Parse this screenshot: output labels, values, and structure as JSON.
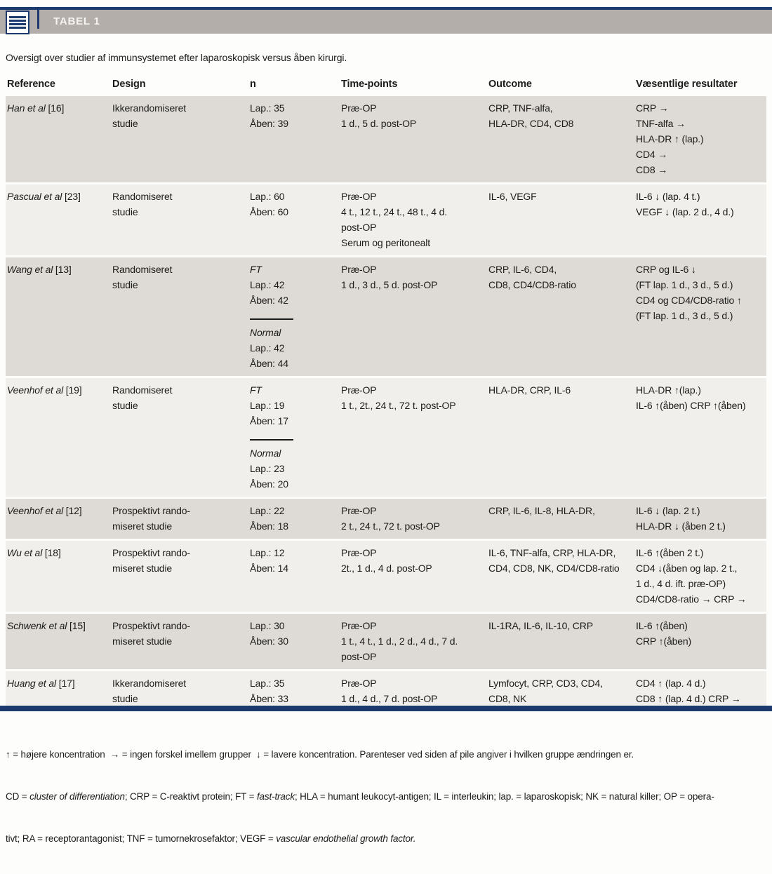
{
  "header": {
    "title": "TABEL 1",
    "icon": "table-list-icon"
  },
  "caption": "Oversigt over studier af immunsystemet efter laparoskopisk versus åben kirurgi.",
  "colors": {
    "navy_rule": "#1c3a6e",
    "title_bar_gray": "#b3aeaa",
    "row_shaded": "#dedad5",
    "row_light": "#f1efeb",
    "text": "#1c1c1a",
    "title_text": "#f5f4f2"
  },
  "table": {
    "columns": [
      "Reference",
      "Design",
      "n",
      "Time-points",
      "Outcome",
      "Væsentlige resultater"
    ],
    "rows": [
      {
        "ref_name": "Han et al",
        "ref_num": "[16]",
        "design": [
          "Ikkerandomiseret",
          "studie"
        ],
        "n": [
          "Lap.: 35",
          "Åben: 39"
        ],
        "timepoints": [
          "Præ-OP",
          "1 d., 5 d. post-OP"
        ],
        "outcome": [
          "CRP, TNF-alfa,",
          "HLA-DR, CD4, CD8"
        ],
        "results": [
          "CRP →",
          "TNF-alfa →",
          "HLA-DR ↑ (lap.)",
          "CD4 →",
          "CD8 →"
        ]
      },
      {
        "ref_name": "Pascual et al",
        "ref_num": "[23]",
        "design": [
          "Randomiseret",
          "studie"
        ],
        "n": [
          "Lap.: 60",
          "Åben: 60"
        ],
        "timepoints": [
          "Præ-OP",
          "4 t., 12 t., 24 t., 48 t., 4 d.",
          "post-OP",
          "Serum og peritonealt"
        ],
        "outcome": [
          "IL-6, VEGF"
        ],
        "results": [
          "IL-6 ↓ (lap. 4 t.)",
          "VEGF ↓ (lap. 2 d., 4 d.)"
        ]
      },
      {
        "ref_name": "Wang et al",
        "ref_num": "[13]",
        "design": [
          "Randomiseret",
          "studie"
        ],
        "n": [
          {
            "t": "FT",
            "i": true
          },
          "Lap.: 42",
          "Åben: 42",
          {
            "d": true
          },
          {
            "t": "Normal",
            "i": true
          },
          "Lap.: 42",
          "Åben: 44"
        ],
        "timepoints": [
          "Præ-OP",
          "1 d., 3 d., 5 d. post-OP"
        ],
        "outcome": [
          "CRP, IL-6, CD4,",
          "CD8, CD4/CD8-ratio"
        ],
        "results": [
          "CRP og IL-6 ↓",
          "(FT lap. 1 d., 3 d., 5 d.)",
          "CD4 og CD4/CD8-ratio ↑",
          "(FT lap. 1 d., 3 d., 5 d.)"
        ]
      },
      {
        "ref_name": "Veenhof et al",
        "ref_num": "[19]",
        "design": [
          "Randomiseret",
          "studie"
        ],
        "n": [
          {
            "t": "FT",
            "i": true
          },
          "Lap.: 19",
          "Åben: 17",
          {
            "d": true
          },
          {
            "t": "Normal",
            "i": true
          },
          "Lap.: 23",
          "Åben: 20"
        ],
        "timepoints": [
          "Præ-OP",
          "1 t., 2t., 24 t., 72 t. post-OP"
        ],
        "outcome": [
          "HLA-DR, CRP, IL-6"
        ],
        "results": [
          "HLA-DR ↑(lap.)",
          "IL-6 ↑(åben) CRP ↑(åben)"
        ]
      },
      {
        "ref_name": "Veenhof et al",
        "ref_num": "[12]",
        "design": [
          "Prospektivt rando-",
          "miseret studie"
        ],
        "n": [
          "Lap.: 22",
          "Åben: 18"
        ],
        "timepoints": [
          "Præ-OP",
          "2 t., 24 t., 72 t. post-OP"
        ],
        "outcome": [
          "CRP, IL-6, IL-8, HLA-DR,"
        ],
        "results": [
          "IL-6 ↓ (lap. 2 t.)",
          "HLA-DR ↓ (åben 2 t.)"
        ]
      },
      {
        "ref_name": "Wu et al",
        "ref_num": "[18]",
        "design": [
          "Prospektivt rando-",
          "miseret studie"
        ],
        "n": [
          "Lap.: 12",
          "Åben: 14"
        ],
        "timepoints": [
          "Præ-OP",
          "2t., 1 d., 4 d. post-OP"
        ],
        "outcome": [
          "IL-6, TNF-alfa, CRP, HLA-DR,",
          "CD4, CD8, NK, CD4/CD8-ratio"
        ],
        "results": [
          "IL-6 ↑(åben 2 t.)",
          "CD4 ↓(åben og lap. 2 t.,",
          "1 d., 4 d. ift. præ-OP)",
          "CD4/CD8-ratio → CRP →"
        ]
      },
      {
        "ref_name": "Schwenk et al",
        "ref_num": "[15]",
        "design": [
          "Prospektivt rando-",
          "miseret studie"
        ],
        "n": [
          "Lap.: 30",
          "Åben: 30"
        ],
        "timepoints": [
          "Præ-OP",
          "1 t., 4 t., 1 d., 2 d., 4 d., 7 d.",
          "post-OP"
        ],
        "outcome": [
          "IL-1RA, IL-6, IL-10, CRP"
        ],
        "results": [
          "IL-6 ↑(åben)",
          "CRP ↑(åben)"
        ]
      },
      {
        "ref_name": "Huang et al",
        "ref_num": "[17]",
        "design": [
          "Ikkerandomiseret",
          "studie"
        ],
        "n": [
          "Lap.: 35",
          "Åben: 33"
        ],
        "timepoints": [
          "Præ-OP",
          "1 d., 4 d., 7 d. post-OP"
        ],
        "outcome": [
          "Lymfocyt, CRP, CD3, CD4,",
          "CD8, NK"
        ],
        "results": [
          "CD4 ↑ (lap. 4 d.)",
          "CD8 ↑ (lap. 4 d.) CRP →"
        ]
      }
    ]
  },
  "footnotes": {
    "line1": "↑ = højere koncentration  → = ingen forskel imellem grupper  ↓ = lavere koncentration. Parenteser ved siden af pile angiver i hvilken gruppe ændringen er.",
    "line2_segments": [
      {
        "t": "CD = "
      },
      {
        "t": "cluster of differentiation",
        "i": true
      },
      {
        "t": "; CRP = C-reaktivt protein; FT = "
      },
      {
        "t": "fast-track",
        "i": true
      },
      {
        "t": "; HLA = humant leukocyt-antigen; IL = interleukin; lap. = laparoskopisk; NK = natural killer; OP = opera-"
      }
    ],
    "line3_segments": [
      {
        "t": "tivt; RA = receptorantagonist; TNF = tumornekrosefaktor; VEGF = "
      },
      {
        "t": "vascular endothelial growth factor.",
        "i": true
      }
    ]
  }
}
